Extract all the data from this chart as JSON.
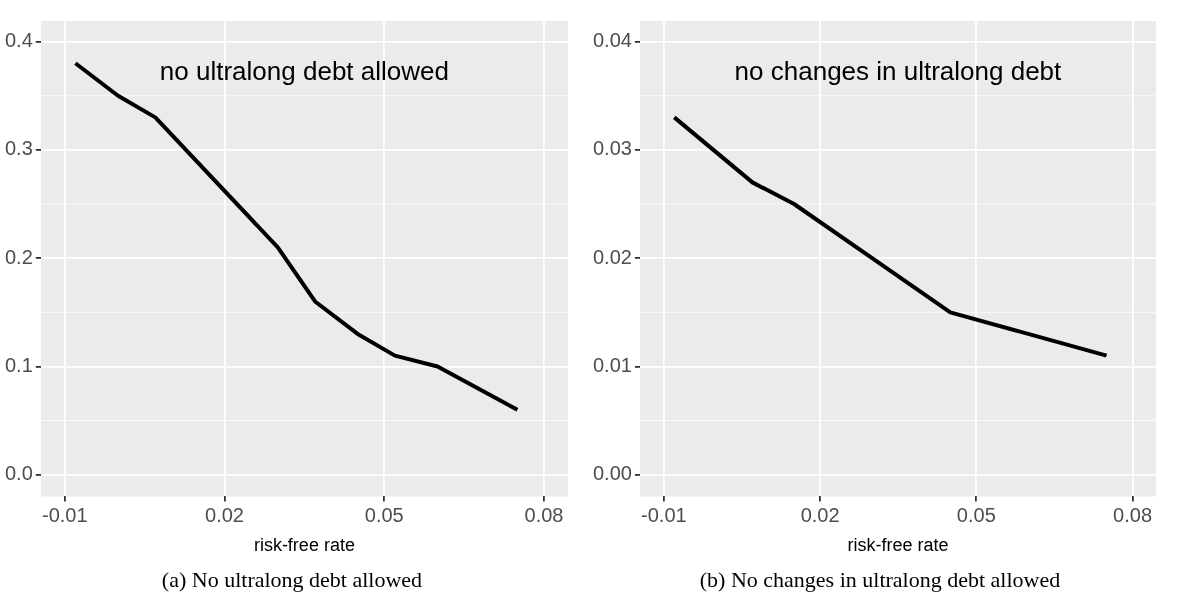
{
  "chart_data": [
    {
      "type": "line",
      "xlabel": "risk-free rate",
      "annotations": [
        "no ultralong debt allowed",
        "(a) No ultralong debt allowed"
      ],
      "xlim": [
        -0.0145,
        0.0845
      ],
      "xticks": [
        -0.01,
        0.02,
        0.05,
        0.08
      ],
      "ylim": [
        -0.02,
        0.419
      ],
      "yticks": [
        {
          "value": 0,
          "label": "0.0"
        },
        0.1,
        0.2,
        0.3,
        0.4
      ],
      "grid": true,
      "legend": false,
      "series": [
        {
          "color": "#000000",
          "x": [
            -0.008,
            0.0,
            0.007,
            0.03,
            0.037,
            0.045,
            0.052,
            0.06,
            0.075
          ],
          "values": [
            0.38,
            0.35,
            0.33,
            0.21,
            0.16,
            0.13,
            0.11,
            0.1,
            0.06
          ]
        }
      ]
    },
    {
      "type": "line",
      "xlabel": "risk-free rate",
      "annotations": [
        "no changes in ultralong debt",
        "(b) No changes in ultralong debt allowed"
      ],
      "xlim": [
        -0.0146,
        0.0845
      ],
      "xticks": [
        -0.01,
        0.02,
        0.05,
        0.08
      ],
      "ylim": [
        -0.002,
        0.0419
      ],
      "yticks": [
        {
          "value": 0,
          "label": "0.00"
        },
        {
          "value": 0.01,
          "label": "0.01"
        },
        {
          "value": 0.02,
          "label": "0.02"
        },
        {
          "value": 0.03,
          "label": "0.03"
        },
        {
          "value": 0.04,
          "label": "0.04"
        }
      ],
      "grid": true,
      "legend": false,
      "series": [
        {
          "color": "#000000",
          "x": [
            -0.008,
            0.007,
            0.015,
            0.045,
            0.075
          ],
          "values": [
            0.033,
            0.027,
            0.025,
            0.015,
            0.011
          ]
        }
      ]
    }
  ]
}
